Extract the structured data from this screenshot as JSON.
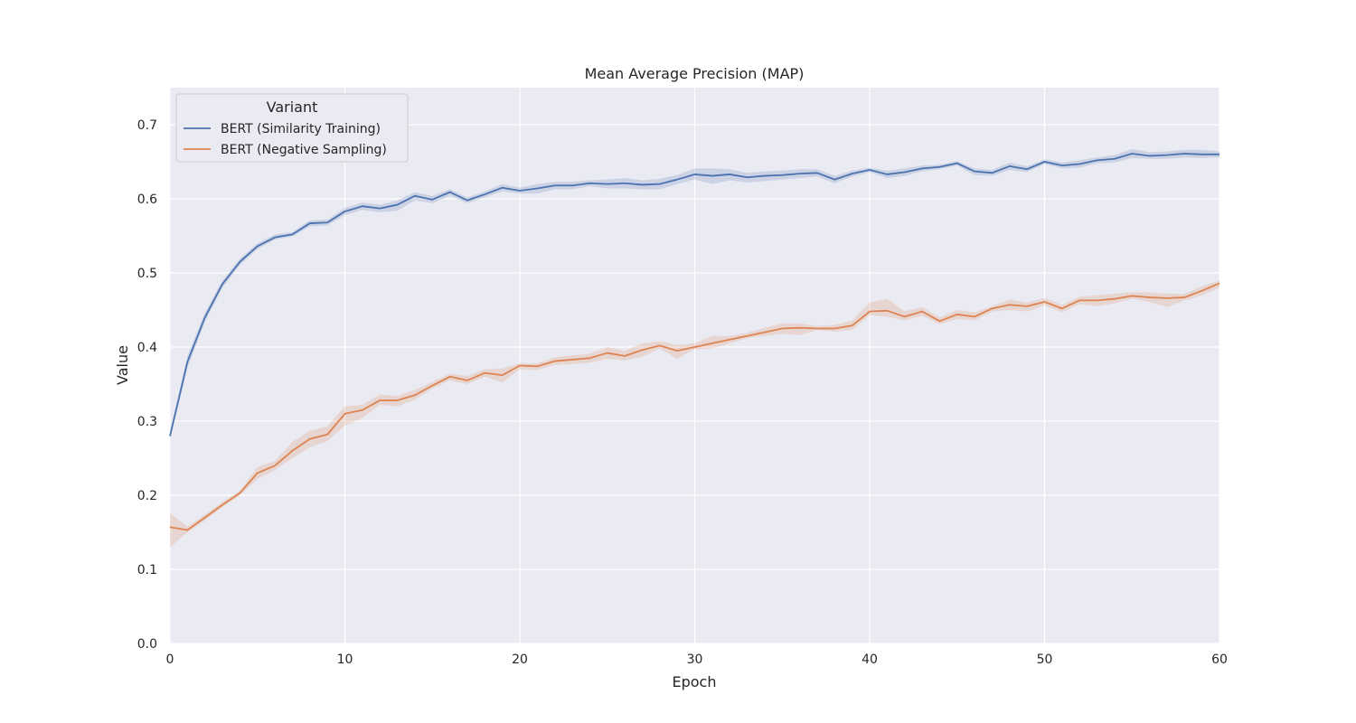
{
  "chart_data": {
    "type": "line",
    "title": "Mean Average Precision (MAP)",
    "xlabel": "Epoch",
    "ylabel": "Value",
    "xlim": [
      0,
      60
    ],
    "ylim": [
      0,
      0.75
    ],
    "xticks": [
      "0",
      "10",
      "20",
      "30",
      "40",
      "50",
      "60"
    ],
    "yticks": [
      "0.0",
      "0.1",
      "0.2",
      "0.3",
      "0.4",
      "0.5",
      "0.6",
      "0.7"
    ],
    "grid": true,
    "legend": {
      "title": "Variant",
      "position": "top-left"
    },
    "x": [
      0,
      1,
      2,
      3,
      4,
      5,
      6,
      7,
      8,
      9,
      10,
      11,
      12,
      13,
      14,
      15,
      16,
      17,
      18,
      19,
      20,
      21,
      22,
      23,
      24,
      25,
      26,
      27,
      28,
      29,
      30,
      31,
      32,
      33,
      34,
      35,
      36,
      37,
      38,
      39,
      40,
      41,
      42,
      43,
      44,
      45,
      46,
      47,
      48,
      49,
      50,
      51,
      52,
      53,
      54,
      55,
      56,
      57,
      58,
      59,
      60
    ],
    "series": [
      {
        "name": "BERT (Similarity Training)",
        "color": "#4c72b0",
        "values": [
          0.28,
          0.38,
          0.44,
          0.485,
          0.515,
          0.536,
          0.548,
          0.552,
          0.567,
          0.568,
          0.583,
          0.59,
          0.587,
          0.592,
          0.604,
          0.599,
          0.609,
          0.598,
          0.606,
          0.615,
          0.611,
          0.614,
          0.618,
          0.618,
          0.621,
          0.62,
          0.621,
          0.619,
          0.62,
          0.626,
          0.633,
          0.631,
          0.633,
          0.629,
          0.631,
          0.632,
          0.634,
          0.635,
          0.626,
          0.634,
          0.639,
          0.633,
          0.636,
          0.641,
          0.643,
          0.648,
          0.637,
          0.635,
          0.644,
          0.64,
          0.65,
          0.645,
          0.647,
          0.652,
          0.654,
          0.661,
          0.658,
          0.659,
          0.661,
          0.66,
          0.66
        ],
        "lower": [
          0.275,
          0.372,
          0.434,
          0.48,
          0.511,
          0.532,
          0.545,
          0.549,
          0.563,
          0.564,
          0.578,
          0.585,
          0.582,
          0.584,
          0.598,
          0.594,
          0.604,
          0.594,
          0.602,
          0.61,
          0.607,
          0.607,
          0.613,
          0.613,
          0.617,
          0.614,
          0.614,
          0.613,
          0.613,
          0.62,
          0.626,
          0.62,
          0.625,
          0.622,
          0.624,
          0.626,
          0.628,
          0.63,
          0.621,
          0.63,
          0.636,
          0.628,
          0.631,
          0.637,
          0.64,
          0.645,
          0.632,
          0.631,
          0.639,
          0.636,
          0.647,
          0.641,
          0.642,
          0.648,
          0.649,
          0.655,
          0.654,
          0.654,
          0.656,
          0.655,
          0.656
        ],
        "upper": [
          0.285,
          0.388,
          0.446,
          0.49,
          0.519,
          0.54,
          0.552,
          0.555,
          0.571,
          0.572,
          0.588,
          0.595,
          0.592,
          0.598,
          0.609,
          0.604,
          0.613,
          0.602,
          0.61,
          0.62,
          0.615,
          0.62,
          0.623,
          0.623,
          0.625,
          0.626,
          0.628,
          0.625,
          0.627,
          0.632,
          0.641,
          0.641,
          0.64,
          0.635,
          0.637,
          0.638,
          0.64,
          0.64,
          0.631,
          0.638,
          0.642,
          0.638,
          0.641,
          0.645,
          0.646,
          0.651,
          0.641,
          0.639,
          0.649,
          0.644,
          0.653,
          0.649,
          0.652,
          0.656,
          0.659,
          0.667,
          0.663,
          0.664,
          0.666,
          0.666,
          0.664
        ]
      },
      {
        "name": "BERT (Negative Sampling)",
        "color": "#dd8452",
        "values": [
          0.157,
          0.153,
          0.17,
          0.187,
          0.203,
          0.23,
          0.24,
          0.26,
          0.276,
          0.282,
          0.31,
          0.315,
          0.328,
          0.328,
          0.335,
          0.348,
          0.36,
          0.355,
          0.365,
          0.362,
          0.375,
          0.374,
          0.381,
          0.383,
          0.385,
          0.392,
          0.388,
          0.396,
          0.402,
          0.395,
          0.4,
          0.405,
          0.41,
          0.415,
          0.42,
          0.425,
          0.426,
          0.425,
          0.425,
          0.429,
          0.448,
          0.449,
          0.441,
          0.448,
          0.435,
          0.444,
          0.441,
          0.452,
          0.457,
          0.455,
          0.461,
          0.452,
          0.463,
          0.463,
          0.465,
          0.469,
          0.467,
          0.466,
          0.467,
          0.476,
          0.486
        ],
        "lower": [
          0.13,
          0.15,
          0.166,
          0.184,
          0.2,
          0.222,
          0.234,
          0.25,
          0.265,
          0.273,
          0.294,
          0.304,
          0.322,
          0.32,
          0.329,
          0.344,
          0.355,
          0.35,
          0.36,
          0.352,
          0.37,
          0.369,
          0.376,
          0.377,
          0.379,
          0.384,
          0.382,
          0.387,
          0.398,
          0.384,
          0.397,
          0.398,
          0.405,
          0.412,
          0.415,
          0.418,
          0.416,
          0.423,
          0.421,
          0.423,
          0.443,
          0.441,
          0.436,
          0.442,
          0.431,
          0.438,
          0.436,
          0.448,
          0.45,
          0.448,
          0.456,
          0.447,
          0.458,
          0.455,
          0.459,
          0.465,
          0.461,
          0.454,
          0.463,
          0.47,
          0.48
        ],
        "upper": [
          0.176,
          0.158,
          0.174,
          0.191,
          0.206,
          0.238,
          0.246,
          0.272,
          0.287,
          0.293,
          0.32,
          0.322,
          0.336,
          0.334,
          0.342,
          0.353,
          0.364,
          0.361,
          0.37,
          0.371,
          0.378,
          0.378,
          0.386,
          0.389,
          0.391,
          0.4,
          0.395,
          0.405,
          0.408,
          0.403,
          0.405,
          0.415,
          0.415,
          0.419,
          0.426,
          0.432,
          0.432,
          0.428,
          0.43,
          0.436,
          0.46,
          0.465,
          0.448,
          0.454,
          0.44,
          0.45,
          0.447,
          0.455,
          0.464,
          0.46,
          0.466,
          0.457,
          0.468,
          0.47,
          0.472,
          0.474,
          0.474,
          0.472,
          0.472,
          0.482,
          0.49
        ]
      }
    ]
  }
}
